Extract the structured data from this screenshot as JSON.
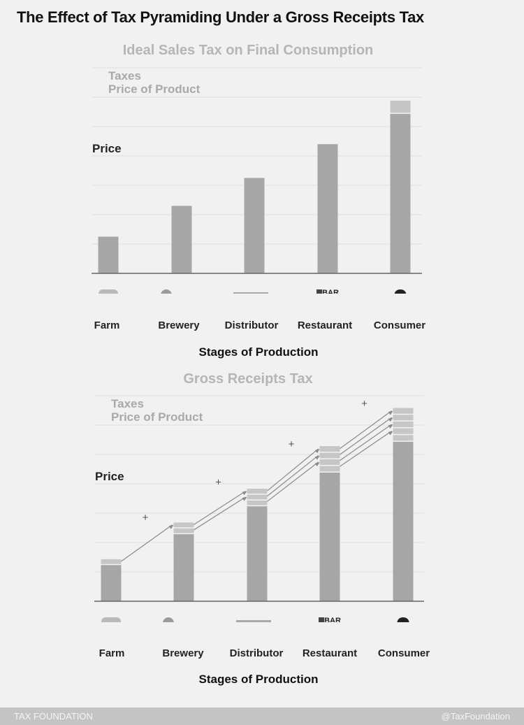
{
  "title": "The Effect of Tax Pyramiding Under a Gross Receipts Tax",
  "footer": {
    "brand": "TAX FOUNDATION",
    "handle": "@TaxFoundation"
  },
  "colors": {
    "bar": "#a6a6a6",
    "tax": "#c6c6c6",
    "axis": "#666666",
    "grid": "#e0e0e0",
    "arrow": "#8a8a8a"
  },
  "stage_icons": [
    "grain-bag-icon",
    "brewery-icon",
    "transport-truck-icon",
    "bar-building-icon",
    "consumer-person-icon"
  ],
  "chart_data": [
    {
      "type": "bar",
      "stacked": true,
      "title": "Ideal Sales Tax on Final Consumption",
      "xlabel": "Stages of Production",
      "ylabel": "Price",
      "legend": [
        "Taxes",
        "Price of Product"
      ],
      "legend_position": "top-left",
      "grid": true,
      "ylim": [
        0,
        7
      ],
      "categories": [
        "Farm",
        "Brewery",
        "Distributor",
        "Restaurant",
        "Consumer"
      ],
      "series": [
        {
          "name": "Price of Product",
          "values": [
            1.25,
            2.3,
            3.25,
            4.4,
            5.45
          ]
        },
        {
          "name": "Taxes",
          "values": [
            0,
            0,
            0,
            0,
            0.45
          ]
        }
      ]
    },
    {
      "type": "bar",
      "stacked": true,
      "title": "Gross Receipts Tax",
      "xlabel": "Stages of Production",
      "ylabel": "Price",
      "legend": [
        "Taxes",
        "Price of Product"
      ],
      "legend_position": "top-left",
      "grid": true,
      "ylim": [
        0,
        7
      ],
      "annotation": "+",
      "categories": [
        "Farm",
        "Brewery",
        "Distributor",
        "Restaurant",
        "Consumer"
      ],
      "series": [
        {
          "name": "Price of Product",
          "values": [
            1.25,
            2.3,
            3.25,
            4.4,
            5.45
          ]
        },
        {
          "name": "Taxes",
          "values": [
            0.2,
            0.4,
            0.6,
            0.9,
            1.15
          ]
        }
      ],
      "tax_layers": [
        1,
        2,
        3,
        4,
        5
      ]
    }
  ]
}
